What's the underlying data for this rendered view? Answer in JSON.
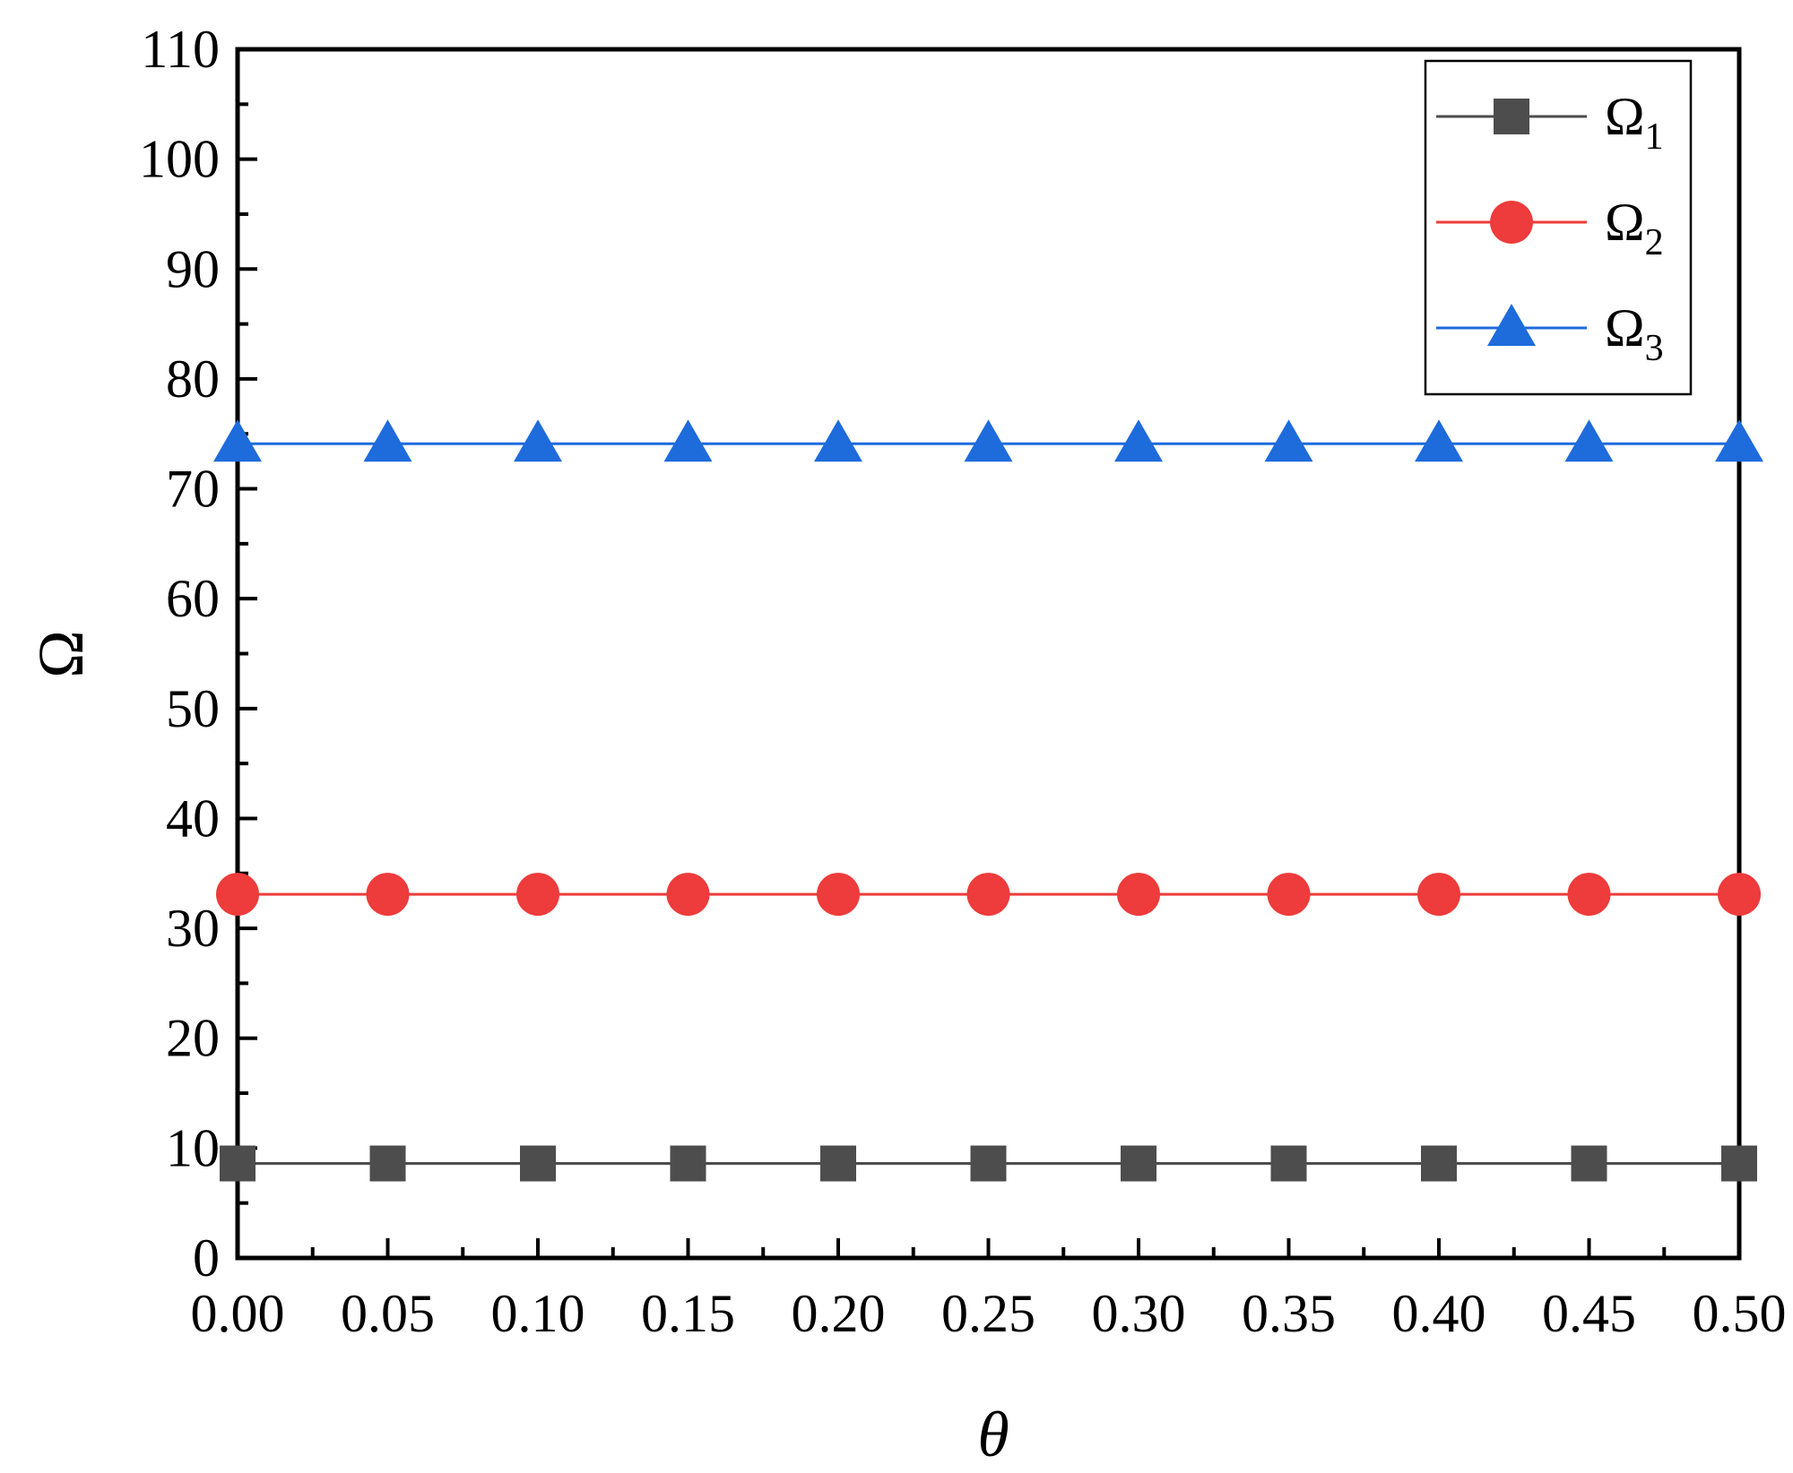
{
  "chart_data": {
    "type": "line",
    "xlabel": "θ",
    "ylabel": "Ω",
    "xlim": [
      0,
      0.5
    ],
    "ylim": [
      0,
      110
    ],
    "x": [
      0.0,
      0.05,
      0.1,
      0.15,
      0.2,
      0.25,
      0.3,
      0.35,
      0.4,
      0.45,
      0.5
    ],
    "x_ticks": [
      "0.00",
      "0.05",
      "0.10",
      "0.15",
      "0.20",
      "0.25",
      "0.30",
      "0.35",
      "0.40",
      "0.45",
      "0.50"
    ],
    "y_ticks": [
      "0",
      "10",
      "20",
      "30",
      "40",
      "50",
      "60",
      "70",
      "80",
      "90",
      "100",
      "110"
    ],
    "grid": false,
    "legend_position": "top-right",
    "series": [
      {
        "name": "Ω",
        "subscript": "1",
        "marker": "square",
        "color": "#4d4d4d",
        "values": [
          8.6,
          8.6,
          8.6,
          8.6,
          8.6,
          8.6,
          8.6,
          8.6,
          8.6,
          8.6,
          8.6
        ]
      },
      {
        "name": "Ω",
        "subscript": "2",
        "marker": "circle",
        "color": "#ee3b3b",
        "values": [
          33.1,
          33.1,
          33.1,
          33.1,
          33.1,
          33.1,
          33.1,
          33.1,
          33.1,
          33.1,
          33.1
        ]
      },
      {
        "name": "Ω",
        "subscript": "3",
        "marker": "triangle",
        "color": "#1e6bdc",
        "values": [
          74.1,
          74.1,
          74.1,
          74.1,
          74.1,
          74.1,
          74.1,
          74.1,
          74.1,
          74.1,
          74.1
        ]
      }
    ]
  }
}
